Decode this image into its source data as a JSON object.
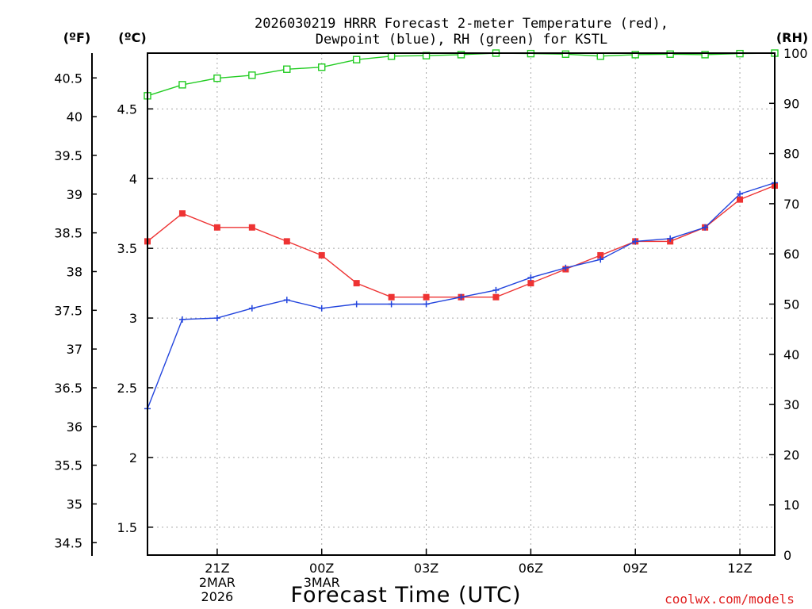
{
  "title_line1": "2026030219 HRRR Forecast 2-meter Temperature (red),",
  "title_line2": "Dewpoint (blue), RH (green) for KSTL",
  "units": {
    "fahrenheit": "(ºF)",
    "celsius": "(ºC)",
    "rh": "(RH)"
  },
  "credit": "coolwx.com/models",
  "chart_data": {
    "type": "line",
    "xlabel": "Forecast Time (UTC)",
    "x_hours": [
      19,
      20,
      21,
      22,
      23,
      24,
      25,
      26,
      27,
      28,
      29,
      30,
      31,
      32,
      33,
      34,
      35,
      36,
      37
    ],
    "x_ticks": [
      {
        "hour": 21,
        "lines": [
          "21Z",
          "2MAR",
          "2026"
        ]
      },
      {
        "hour": 24,
        "lines": [
          "00Z",
          "3MAR"
        ]
      },
      {
        "hour": 27,
        "lines": [
          "03Z"
        ]
      },
      {
        "hour": 30,
        "lines": [
          "06Z"
        ]
      },
      {
        "hour": 33,
        "lines": [
          "09Z"
        ]
      },
      {
        "hour": 36,
        "lines": [
          "12Z"
        ]
      }
    ],
    "xlim": [
      19,
      37
    ],
    "celsius_axis": {
      "range": [
        1.3,
        4.9
      ],
      "ticks": [
        "1.5",
        "2",
        "2.5",
        "3",
        "3.5",
        "4",
        "4.5"
      ]
    },
    "fahrenheit_axis": {
      "range": [
        34.34,
        40.82
      ],
      "ticks": [
        "34.5",
        "35",
        "35.5",
        "36",
        "36.5",
        "37",
        "37.5",
        "38",
        "38.5",
        "39",
        "39.5",
        "40",
        "40.5"
      ]
    },
    "rh_axis": {
      "range": [
        0,
        100
      ],
      "ticks": [
        "0",
        "10",
        "20",
        "30",
        "40",
        "50",
        "60",
        "70",
        "80",
        "90",
        "100"
      ]
    },
    "grid": true,
    "series": [
      {
        "name": "Temperature (red)",
        "axis": "celsius",
        "color": "#ee3333",
        "marker": "filled-square",
        "values": [
          3.55,
          3.75,
          3.65,
          3.65,
          3.55,
          3.45,
          3.25,
          3.15,
          3.15,
          3.15,
          3.15,
          3.25,
          3.35,
          3.45,
          3.55,
          3.55,
          3.65,
          3.85,
          3.95
        ]
      },
      {
        "name": "Dewpoint (blue)",
        "axis": "celsius",
        "color": "#2244dd",
        "marker": "plus",
        "values": [
          2.35,
          2.99,
          3.0,
          3.07,
          3.13,
          3.07,
          3.1,
          3.1,
          3.1,
          3.15,
          3.2,
          3.29,
          3.36,
          3.42,
          3.55,
          3.57,
          3.65,
          3.89,
          3.97
        ]
      },
      {
        "name": "RH (green)",
        "axis": "rh",
        "color": "#22cc22",
        "marker": "open-square",
        "values": [
          91.5,
          93.7,
          95.0,
          95.6,
          96.8,
          97.2,
          98.7,
          99.4,
          99.5,
          99.7,
          100.0,
          99.9,
          99.8,
          99.4,
          99.7,
          99.8,
          99.7,
          99.9,
          100.0
        ]
      }
    ]
  }
}
